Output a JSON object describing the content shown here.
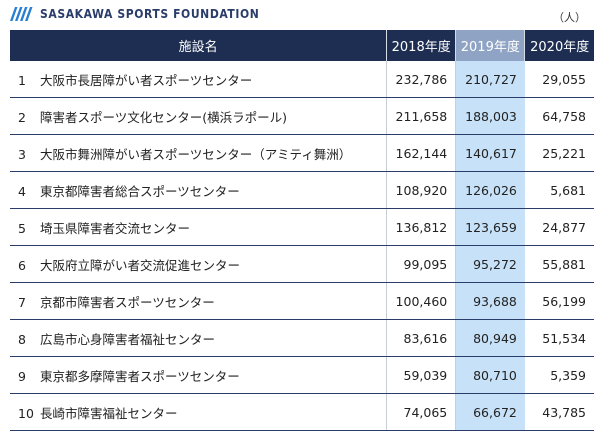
{
  "header": {
    "logo_text": "SASAKAWA SPORTS FOUNDATION",
    "unit": "（人）"
  },
  "table": {
    "columns": [
      "施設名",
      "2018年度",
      "2019年度",
      "2020年度"
    ],
    "highlight_column": "2019年度",
    "rows": [
      {
        "rank": "1",
        "name": "大阪市長居障がい者スポーツセンター",
        "y2018": "232,786",
        "y2019": "210,727",
        "y2020": "29,055"
      },
      {
        "rank": "2",
        "name": "障害者スポーツ文化センター(横浜ラポール)",
        "y2018": "211,658",
        "y2019": "188,003",
        "y2020": "64,758"
      },
      {
        "rank": "3",
        "name": "大阪市舞洲障がい者スポーツセンター（アミティ舞洲）",
        "y2018": "162,144",
        "y2019": "140,617",
        "y2020": "25,221"
      },
      {
        "rank": "4",
        "name": "東京都障害者総合スポーツセンター",
        "y2018": "108,920",
        "y2019": "126,026",
        "y2020": "5,681"
      },
      {
        "rank": "5",
        "name": "埼玉県障害者交流センター",
        "y2018": "136,812",
        "y2019": "123,659",
        "y2020": "24,877"
      },
      {
        "rank": "6",
        "name": "大阪府立障がい者交流促進センター",
        "y2018": "99,095",
        "y2019": "95,272",
        "y2020": "55,881"
      },
      {
        "rank": "7",
        "name": "京都市障害者スポーツセンター",
        "y2018": "100,460",
        "y2019": "93,688",
        "y2020": "56,199"
      },
      {
        "rank": "8",
        "name": "広島市心身障害者福祉センター",
        "y2018": "83,616",
        "y2019": "80,949",
        "y2020": "51,534"
      },
      {
        "rank": "9",
        "name": "東京都多摩障害者スポーツセンター",
        "y2018": "59,039",
        "y2019": "80,710",
        "y2020": "5,359"
      },
      {
        "rank": "10",
        "name": "長崎市障害福祉センター",
        "y2018": "74,065",
        "y2019": "66,672",
        "y2020": "43,785"
      }
    ]
  },
  "colors": {
    "header_bg": "#1d2e52",
    "highlight_header": "#8fa3c4",
    "highlight_cell": "#c7e2f8",
    "row_border": "#2a3d6a"
  }
}
